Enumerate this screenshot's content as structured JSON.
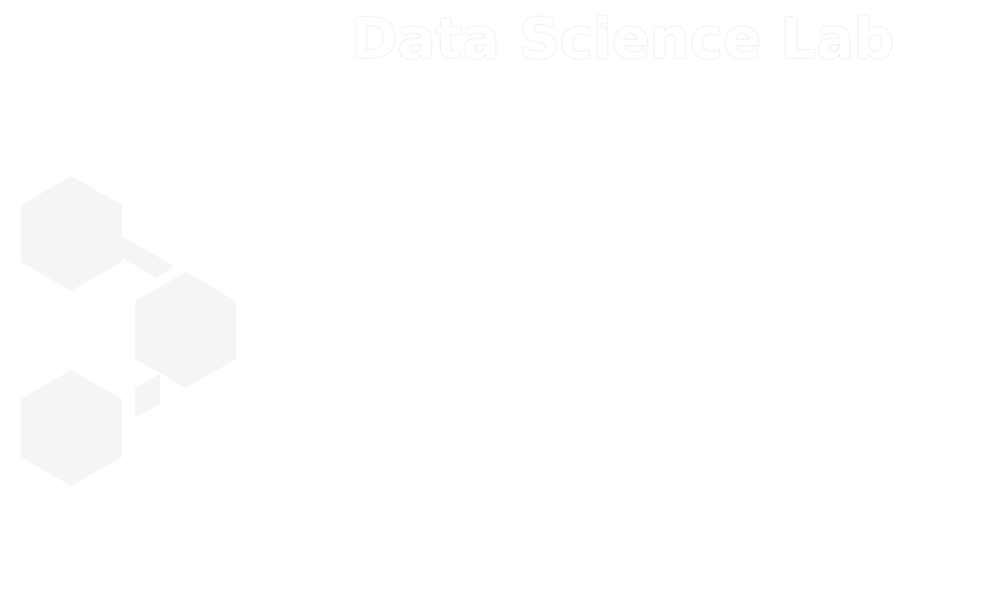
{
  "brand": {
    "name": "Data Science Lab",
    "text_color": "#ffffff",
    "mark_color": "#f4f5f7",
    "mark_icon": "hexagon-cluster-icon"
  }
}
